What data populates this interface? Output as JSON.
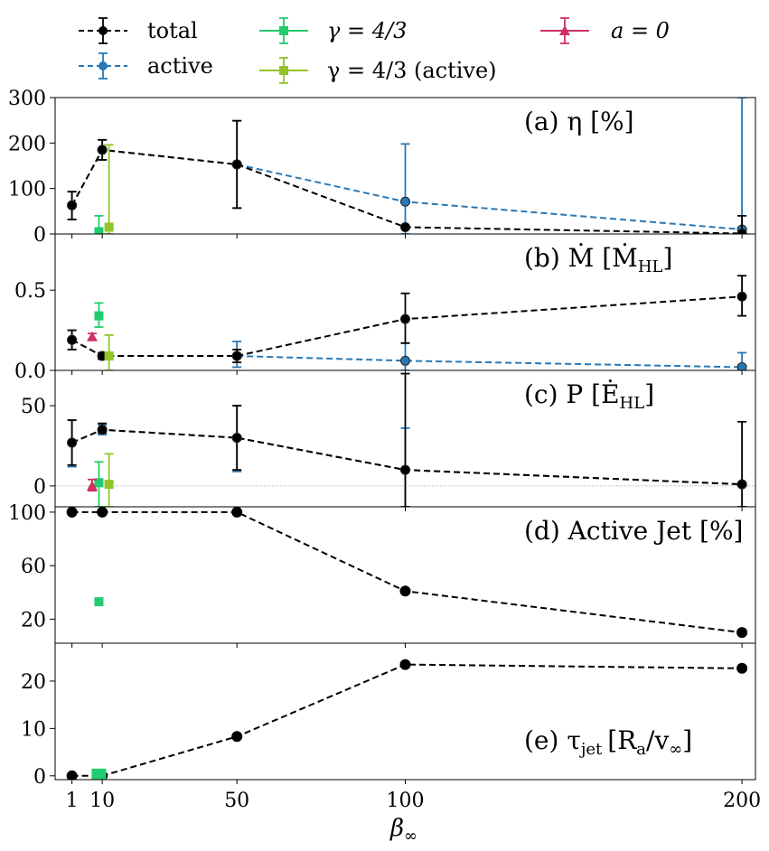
{
  "chart_data": {
    "type": "line",
    "xlabel": "β∞",
    "x_ticks": [
      1,
      10,
      50,
      100,
      200
    ],
    "xlim": [
      -4,
      204
    ],
    "legend": {
      "placement": "top",
      "entries": [
        {
          "label": "total",
          "color": "#000000",
          "marker": "circle",
          "linestyle": "dashed"
        },
        {
          "label": "active",
          "color": "#2878b5",
          "marker": "circle",
          "linestyle": "dashed"
        },
        {
          "label": "γ = 4/3",
          "color": "#22cc6e",
          "marker": "square",
          "linestyle": "solid"
        },
        {
          "label": "γ = 4/3 (active)",
          "color": "#93c42a",
          "marker": "square",
          "linestyle": "solid"
        },
        {
          "label": "a = 0",
          "color": "#cc3360",
          "marker": "triangle",
          "linestyle": "solid"
        }
      ]
    },
    "panels": [
      {
        "id": "a",
        "label": "(a) η [%]",
        "ylim": [
          0,
          300
        ],
        "yticks": [
          0,
          100,
          200,
          300
        ],
        "series": [
          {
            "name": "total",
            "x": [
              1,
              10,
              50,
              100,
              200
            ],
            "y": [
              63,
              185,
              153,
              15,
              1
            ],
            "err": [
              [
                32,
                93
              ],
              [
                163,
                207
              ],
              [
                57,
                249
              ],
              [
                12,
                18
              ],
              [
                0,
                40
              ]
            ]
          },
          {
            "name": "active",
            "x": [
              1,
              10,
              50,
              100,
              200
            ],
            "y": [
              63,
              185,
              153,
              71,
              10
            ],
            "err": [
              [
                32,
                93
              ],
              [
                163,
                207
              ],
              [
                57,
                249
              ],
              [
                0,
                198
              ],
              [
                0,
                300
              ]
            ]
          },
          {
            "name": "γ = 4/3",
            "x": [
              9
            ],
            "y": [
              5
            ],
            "err": [
              [
                0,
                40
              ]
            ]
          },
          {
            "name": "γ = 4/3 (active)",
            "x": [
              12
            ],
            "y": [
              15
            ],
            "err": [
              [
                0,
                196
              ]
            ]
          }
        ]
      },
      {
        "id": "b",
        "label": "(b) Ṁ [Ṁ_HL]",
        "ylim": [
          0,
          0.85
        ],
        "yticks": [
          0.0,
          0.5
        ],
        "series": [
          {
            "name": "total",
            "x": [
              1,
              10,
              50,
              100,
              200
            ],
            "y": [
              0.19,
              0.09,
              0.09,
              0.32,
              0.46
            ],
            "err": [
              [
                0.13,
                0.25
              ],
              [
                0.07,
                0.11
              ],
              [
                0.05,
                0.13
              ],
              [
                0.17,
                0.48
              ],
              [
                0.34,
                0.59
              ]
            ]
          },
          {
            "name": "active",
            "x": [
              1,
              10,
              50,
              100,
              200
            ],
            "y": [
              0.19,
              0.09,
              0.09,
              0.06,
              0.02
            ],
            "err": [
              [
                0.13,
                0.25
              ],
              [
                0.07,
                0.11
              ],
              [
                0.02,
                0.18
              ],
              [
                0.0,
                0.17
              ],
              [
                0.0,
                0.11
              ]
            ]
          },
          {
            "name": "γ = 4/3",
            "x": [
              9
            ],
            "y": [
              0.34
            ],
            "err": [
              [
                0.27,
                0.42
              ]
            ]
          },
          {
            "name": "γ = 4/3 (active)",
            "x": [
              12
            ],
            "y": [
              0.09
            ],
            "err": [
              [
                0.0,
                0.22
              ]
            ]
          },
          {
            "name": "a = 0",
            "x": [
              7
            ],
            "y": [
              0.21
            ],
            "err": [
              [
                0.19,
                0.23
              ]
            ]
          }
        ]
      },
      {
        "id": "c",
        "label": "(c) P [Ė_HL]",
        "ylim": [
          -13,
          72
        ],
        "yticks": [
          0,
          50
        ],
        "series": [
          {
            "name": "total",
            "x": [
              1,
              10,
              50,
              100,
              200
            ],
            "y": [
              27,
              35,
              30,
              10,
              1
            ],
            "err": [
              [
                13,
                41
              ],
              [
                33,
                39
              ],
              [
                10,
                50
              ],
              [
                -13,
                70
              ],
              [
                -13,
                40
              ]
            ]
          },
          {
            "name": "active",
            "x": [
              1,
              10,
              50,
              100,
              200
            ],
            "y": [
              27,
              35,
              30,
              10,
              1
            ],
            "err": [
              [
                12,
                41
              ],
              [
                32,
                38
              ],
              [
                9,
                50
              ],
              [
                -13,
                36
              ],
              [
                0,
                2
              ]
            ]
          },
          {
            "name": "γ = 4/3",
            "x": [
              9
            ],
            "y": [
              2
            ],
            "err": [
              [
                -13,
                15
              ]
            ]
          },
          {
            "name": "γ = 4/3 (active)",
            "x": [
              12
            ],
            "y": [
              1
            ],
            "err": [
              [
                -13,
                20
              ]
            ]
          },
          {
            "name": "a = 0",
            "x": [
              7
            ],
            "y": [
              0
            ],
            "err": [
              [
                -3,
                4
              ]
            ]
          }
        ]
      },
      {
        "id": "d",
        "label": "(d) Active Jet [%]",
        "ylim": [
          2,
          104
        ],
        "yticks": [
          20,
          60,
          100
        ],
        "series": [
          {
            "name": "total",
            "x": [
              1,
              10,
              50,
              100,
              200
            ],
            "y": [
              100,
              100,
              100,
              41,
              10
            ]
          },
          {
            "name": "γ = 4/3",
            "x": [
              9
            ],
            "y": [
              33
            ]
          }
        ]
      },
      {
        "id": "e",
        "label": "(e) τ_jet [R_a/v∞]",
        "ylim": [
          -0.8,
          28
        ],
        "yticks": [
          0,
          10,
          20
        ],
        "series": [
          {
            "name": "total",
            "x": [
              1,
              10,
              50,
              100,
              200
            ],
            "y": [
              0,
              0,
              8.3,
              23.5,
              22.7
            ]
          },
          {
            "name": "γ = 4/3",
            "x": [
              9
            ],
            "y": [
              0
            ]
          }
        ]
      }
    ]
  },
  "text": {
    "legend_total": "total",
    "legend_active": "active",
    "legend_gamma": "γ = 4/3",
    "legend_gamma_active": "γ = 4/3 (active)",
    "legend_a0": "a = 0",
    "label_a": "(a) η [%]",
    "label_b": "(b) Ṁ [Ṁ",
    "label_b_sub": "HL",
    "label_c": "(c) P [Ė",
    "label_c_sub": "HL",
    "label_d": "(d) Active Jet [%]",
    "label_e": "(e) τ",
    "label_e_sub": "jet",
    "label_e_rest": "[R",
    "label_e_sub2": "a",
    "label_e_rest2": "/v",
    "label_e_sub3": "∞",
    "xlabel": "β",
    "xlabel_sub": "∞"
  }
}
